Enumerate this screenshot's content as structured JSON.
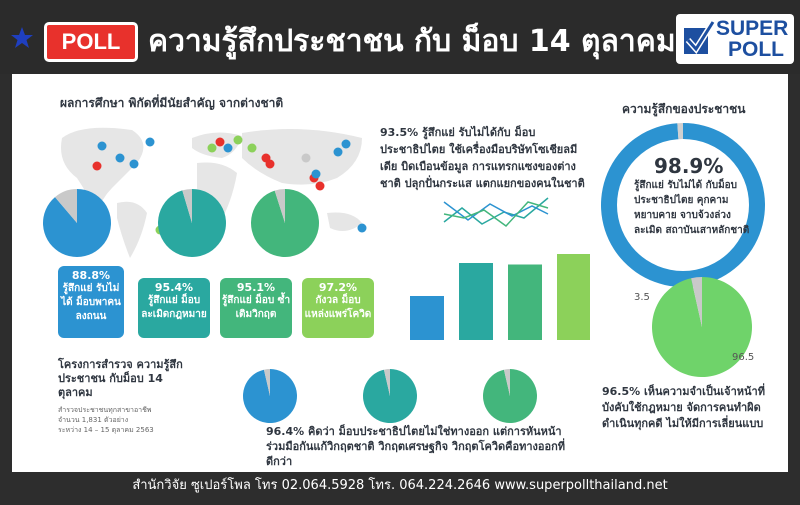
{
  "header": {
    "badge": "POLL",
    "title": "ความรู้สึกประชาชน กับ ม็อบ 14 ตุลาคม",
    "logo_line1": "SUPER",
    "logo_line2": "POLL"
  },
  "map_section": {
    "heading": "ผลการศึกษา พิกัดที่มีนัยสำคัญ จากต่างชาติ"
  },
  "cards": [
    {
      "pct": "88.8%",
      "label": "รู้สึกแย่ รับไม่ได้ ม็อบพาคนลงถนน",
      "color": "#2c93d1"
    },
    {
      "pct": "95.4%",
      "label": "รู้สึกแย่ ม็อบละเมิดกฎหมาย",
      "color": "#2aa8a0"
    },
    {
      "pct": "95.1%",
      "label": "รู้สึกแย่ ม็อบ ซ้ำเติมวิกฤต",
      "color": "#43b67c"
    },
    {
      "pct": "97.2%",
      "label": "กังวล ม็อบ แหล่งแพร่โควิด",
      "color": "#8cd15a"
    }
  ],
  "project": {
    "title": "โครงการสำรวจ ความรู้สึกประชาชน กับม็อบ 14 ตุลาคม",
    "line1": "สำรวจประชาชนทุกสาขาอาชีพ",
    "line2": "จำนวน 1,831 ตัวอย่าง",
    "line3": "ระหว่าง 14 – 15 ตุลาคม 2563"
  },
  "foreign_text": "93.5% รู้สึกแย่ รับไม่ได้กับ ม็อบประชาธิปไตย ใช้เครื่องมือบริษัทโซเชียลมีเดีย บิดเบือนข้อมูล การแทรกแซงของต่างชาติ ปลุกปั่นกระแส แตกแยกของคนในชาติ",
  "people_section": {
    "heading": "ความรู้สึกของประชาชน",
    "big_pct": "98.9%",
    "big_text": "รู้สึกแย่ รับไม่ได้ กับม็อบประชาธิปไตย คุกคาม หยาบคาย จาบจ้วงล่วงละเมิด สถาบันเสาหลักชาติ"
  },
  "duty_text": "96.5% เห็นความจำเป็นเจ้าหน้าที่ บังคับใช้กฎหมาย จัดการคนทำผิด ดำเนินทุกคดี ไม่ให้มีการเลี่ยนแบบ",
  "solution_text": "96.4% คิดว่า ม็อบประชาธิปไตยไม่ใช่ทางออก แต่การหันหน้าร่วมมือกันแก้วิกฤตชาติ วิกฤตเศรษฐกิจ วิกฤตโควิดคือทางออกที่ดีกว่า",
  "footer": "สำนักวิจัย ซูเปอร์โพล โทร 02.064.5928  โทร. 064.224.2646 www.superpollthailand.net",
  "chart_data": [
    {
      "type": "pie",
      "name_hint": "",
      "values": [
        88.8,
        11.2
      ],
      "colors": [
        "#2c93d1",
        "#c9c9c9"
      ]
    },
    {
      "type": "pie",
      "values": [
        95.4,
        4.6
      ],
      "colors": [
        "#2aa8a0",
        "#c9c9c9"
      ]
    },
    {
      "type": "pie",
      "values": [
        95.1,
        4.9
      ],
      "colors": [
        "#43b67c",
        "#c9c9c9"
      ]
    },
    {
      "type": "pie",
      "values": [
        98.9,
        1.1
      ],
      "colors": [
        "#2c93d1",
        "#d0d0d0"
      ],
      "donut": true
    },
    {
      "type": "pie",
      "values": [
        96.5,
        3.5
      ],
      "labels": [
        "96.5",
        "3.5"
      ],
      "colors": [
        "#6fd36a",
        "#c9c9c9"
      ]
    },
    {
      "type": "pie",
      "values": [
        96.4,
        3.6
      ],
      "colors": [
        "#2c93d1",
        "#c9c9c9"
      ]
    },
    {
      "type": "pie",
      "values": [
        96.4,
        3.6
      ],
      "colors": [
        "#2aa8a0",
        "#c9c9c9"
      ]
    },
    {
      "type": "pie",
      "values": [
        96.4,
        3.6
      ],
      "colors": [
        "#43b67c",
        "#c9c9c9"
      ]
    },
    {
      "type": "bar",
      "values": [
        88.8,
        95.4,
        95.1,
        97.2
      ],
      "colors": [
        "#2c93d1",
        "#2aa8a0",
        "#43b67c",
        "#8cd15a"
      ]
    }
  ],
  "colors": {
    "accent": "#2c93d1",
    "badge": "#e8312c"
  }
}
